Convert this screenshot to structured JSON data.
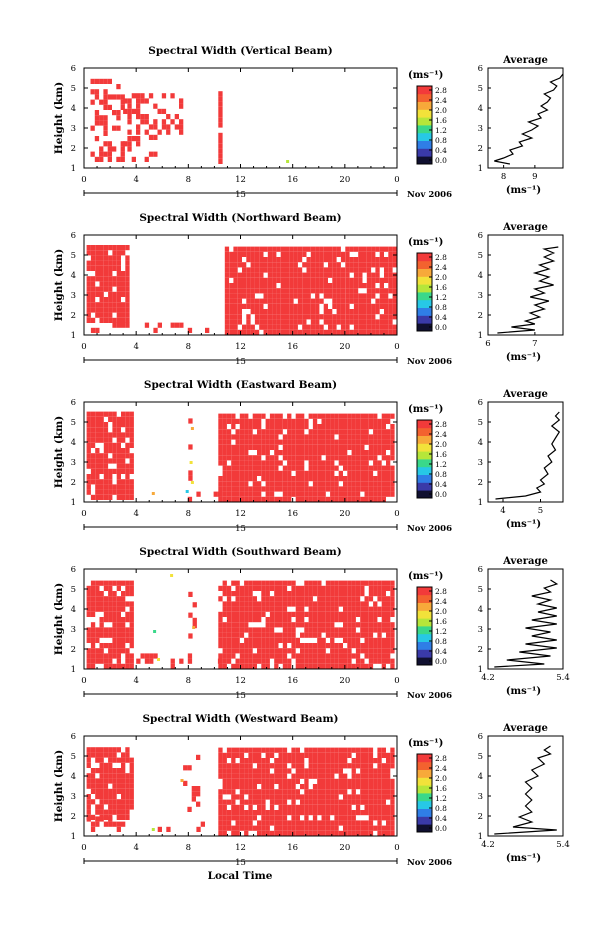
{
  "figure": {
    "xlabel": "Local Time",
    "date_label": "15",
    "date_suffix": "Nov 2006",
    "unit_label": "(ms⁻¹)",
    "avg_title": "Average",
    "avg_xlabel": "(ms⁻¹)"
  },
  "colorbar": {
    "ticks": [
      "0.0",
      "0.4",
      "0.8",
      "1.2",
      "1.6",
      "2.0",
      "2.4",
      "2.8"
    ],
    "colors": [
      "#101030",
      "#3a3aa8",
      "#2f7ee6",
      "#27c8e6",
      "#3ad88a",
      "#b6e63a",
      "#f2e23a",
      "#f7a93a",
      "#f3622f",
      "#f23a3a"
    ]
  },
  "colors": {
    "fill": "#f23a3a",
    "axis": "#000000"
  },
  "chart_data": [
    {
      "type": "heatmap",
      "title": "Spectral Width (Vertical Beam)",
      "ylabel": "Height (km)",
      "xlim": [
        0,
        24
      ],
      "ylim": [
        1,
        6
      ],
      "xticks": [
        "0",
        "4",
        "8",
        "12",
        "16",
        "20",
        "0"
      ],
      "yticks": [
        "1",
        "2",
        "3",
        "4",
        "5",
        "6"
      ],
      "colorbar_range": [
        0.0,
        2.8
      ],
      "data_blocks": [
        {
          "t0": 0.5,
          "t1": 3.0,
          "h0": 1.3,
          "h1": 5.4,
          "density": 0.45
        },
        {
          "t0": 3.0,
          "t1": 7.5,
          "h0": 2.4,
          "h1": 4.6,
          "density": 0.4
        },
        {
          "t0": 3.0,
          "t1": 5.5,
          "h0": 1.3,
          "h1": 2.4,
          "density": 0.25
        },
        {
          "t0": 10.3,
          "t1": 10.5,
          "h0": 1.2,
          "h1": 4.6,
          "density": 0.95
        }
      ],
      "scattered": [
        {
          "t": 15.5,
          "h": 1.25,
          "color_index": 5
        }
      ],
      "average": {
        "xlim": [
          7.5,
          9.9
        ],
        "xticks": [
          "8",
          "9"
        ],
        "profile": [
          [
            8.2,
            1.2
          ],
          [
            7.7,
            1.35
          ],
          [
            8.0,
            1.5
          ],
          [
            8.3,
            1.7
          ],
          [
            8.2,
            1.9
          ],
          [
            8.6,
            2.1
          ],
          [
            8.5,
            2.3
          ],
          [
            8.9,
            2.5
          ],
          [
            8.6,
            2.7
          ],
          [
            8.9,
            2.9
          ],
          [
            9.1,
            3.1
          ],
          [
            8.8,
            3.3
          ],
          [
            9.2,
            3.5
          ],
          [
            9.1,
            3.7
          ],
          [
            9.4,
            3.9
          ],
          [
            9.2,
            4.1
          ],
          [
            9.4,
            4.3
          ],
          [
            9.5,
            4.5
          ],
          [
            9.3,
            4.7
          ],
          [
            9.6,
            4.9
          ],
          [
            9.7,
            5.1
          ],
          [
            9.5,
            5.3
          ],
          [
            9.8,
            5.5
          ],
          [
            9.9,
            5.7
          ]
        ]
      }
    },
    {
      "type": "heatmap",
      "title": "Spectral Width (Northward Beam)",
      "ylabel": "Height (km)",
      "xlim": [
        0,
        24
      ],
      "ylim": [
        1,
        6
      ],
      "xticks": [
        "0",
        "4",
        "8",
        "12",
        "16",
        "20",
        "0"
      ],
      "yticks": [
        "1",
        "2",
        "3",
        "4",
        "5",
        "6"
      ],
      "colorbar_range": [
        0.0,
        2.8
      ],
      "data_blocks": [
        {
          "t0": 0.2,
          "t1": 3.3,
          "h0": 1.6,
          "h1": 5.4,
          "density": 0.88
        },
        {
          "t0": 0.2,
          "t1": 3.6,
          "h0": 1.1,
          "h1": 1.6,
          "density": 0.35
        },
        {
          "t0": 4.0,
          "t1": 10.8,
          "h0": 1.1,
          "h1": 1.4,
          "density": 0.12
        },
        {
          "t0": 10.8,
          "t1": 23.8,
          "h0": 1.0,
          "h1": 5.4,
          "density": 0.9
        }
      ],
      "scattered": [],
      "average": {
        "xlim": [
          6.0,
          7.6
        ],
        "xticks": [
          "6",
          "7"
        ],
        "profile": [
          [
            6.2,
            1.1
          ],
          [
            7.0,
            1.25
          ],
          [
            6.5,
            1.4
          ],
          [
            7.0,
            1.55
          ],
          [
            6.8,
            1.7
          ],
          [
            7.1,
            1.9
          ],
          [
            6.9,
            2.1
          ],
          [
            7.2,
            2.3
          ],
          [
            7.0,
            2.5
          ],
          [
            7.3,
            2.7
          ],
          [
            6.9,
            2.9
          ],
          [
            7.2,
            3.1
          ],
          [
            7.0,
            3.3
          ],
          [
            7.4,
            3.5
          ],
          [
            7.1,
            3.7
          ],
          [
            7.3,
            3.9
          ],
          [
            7.0,
            4.1
          ],
          [
            7.3,
            4.3
          ],
          [
            7.1,
            4.5
          ],
          [
            7.4,
            4.7
          ],
          [
            7.2,
            4.9
          ],
          [
            7.4,
            5.1
          ],
          [
            7.2,
            5.3
          ],
          [
            7.5,
            5.4
          ]
        ]
      }
    },
    {
      "type": "heatmap",
      "title": "Spectral Width (Eastward Beam)",
      "ylabel": "Height (km)",
      "xlim": [
        0,
        24
      ],
      "ylim": [
        1,
        6
      ],
      "xticks": [
        "0",
        "4",
        "8",
        "12",
        "16",
        "20",
        "0"
      ],
      "yticks": [
        "1",
        "2",
        "3",
        "4",
        "5",
        "6"
      ],
      "colorbar_range": [
        0.0,
        2.8
      ],
      "data_blocks": [
        {
          "t0": 0.2,
          "t1": 3.6,
          "h0": 1.1,
          "h1": 5.4,
          "density": 0.85
        },
        {
          "t0": 4.0,
          "t1": 10.3,
          "h0": 1.0,
          "h1": 1.5,
          "density": 0.15
        },
        {
          "t0": 8.0,
          "t1": 8.3,
          "h0": 1.8,
          "h1": 5.0,
          "density": 0.3
        },
        {
          "t0": 10.3,
          "t1": 23.8,
          "h0": 1.0,
          "h1": 5.4,
          "density": 0.9
        }
      ],
      "scattered": [
        {
          "t": 5.2,
          "h": 1.35,
          "color_index": 7
        },
        {
          "t": 7.8,
          "h": 1.45,
          "color_index": 3
        },
        {
          "t": 8.2,
          "h": 1.9,
          "color_index": 6
        },
        {
          "t": 8.1,
          "h": 2.9,
          "color_index": 6
        },
        {
          "t": 8.2,
          "h": 4.6,
          "color_index": 7
        }
      ],
      "average": {
        "xlim": [
          3.6,
          5.6
        ],
        "xticks": [
          "4",
          "5"
        ],
        "profile": [
          [
            3.8,
            1.15
          ],
          [
            4.6,
            1.3
          ],
          [
            5.0,
            1.5
          ],
          [
            4.9,
            1.7
          ],
          [
            5.1,
            1.9
          ],
          [
            5.0,
            2.1
          ],
          [
            5.2,
            2.4
          ],
          [
            5.1,
            2.7
          ],
          [
            5.3,
            3.0
          ],
          [
            5.2,
            3.3
          ],
          [
            5.4,
            3.6
          ],
          [
            5.3,
            3.9
          ],
          [
            5.4,
            4.2
          ],
          [
            5.5,
            4.5
          ],
          [
            5.3,
            4.8
          ],
          [
            5.5,
            5.1
          ],
          [
            5.4,
            5.3
          ],
          [
            5.5,
            5.5
          ]
        ]
      }
    },
    {
      "type": "heatmap",
      "title": "Spectral Width (Southward Beam)",
      "ylabel": "Height (km)",
      "xlim": [
        0,
        24
      ],
      "ylim": [
        1,
        6
      ],
      "xticks": [
        "0",
        "4",
        "8",
        "12",
        "16",
        "20",
        "0"
      ],
      "yticks": [
        "1",
        "2",
        "3",
        "4",
        "5",
        "6"
      ],
      "colorbar_range": [
        0.0,
        2.8
      ],
      "data_blocks": [
        {
          "t0": 0.2,
          "t1": 3.6,
          "h0": 1.0,
          "h1": 5.4,
          "density": 0.85
        },
        {
          "t0": 4.0,
          "t1": 10.3,
          "h0": 1.0,
          "h1": 1.6,
          "density": 0.18
        },
        {
          "t0": 8.0,
          "t1": 8.6,
          "h0": 2.0,
          "h1": 5.2,
          "density": 0.3
        },
        {
          "t0": 10.3,
          "t1": 23.8,
          "h0": 1.0,
          "h1": 5.4,
          "density": 0.9
        }
      ],
      "scattered": [
        {
          "t": 5.3,
          "h": 2.8,
          "color_index": 4
        },
        {
          "t": 5.6,
          "h": 1.4,
          "color_index": 6
        },
        {
          "t": 8.3,
          "h": 3.0,
          "color_index": 7
        },
        {
          "t": 6.6,
          "h": 5.6,
          "color_index": 6
        }
      ],
      "average": {
        "xlim": [
          4.2,
          5.4
        ],
        "xticks": [
          "4.2",
          "5.4"
        ],
        "profile": [
          [
            4.3,
            1.1
          ],
          [
            5.1,
            1.25
          ],
          [
            4.5,
            1.45
          ],
          [
            5.2,
            1.65
          ],
          [
            4.7,
            1.85
          ],
          [
            5.3,
            2.05
          ],
          [
            4.8,
            2.25
          ],
          [
            5.3,
            2.45
          ],
          [
            4.9,
            2.65
          ],
          [
            5.2,
            2.85
          ],
          [
            4.8,
            3.05
          ],
          [
            5.3,
            3.25
          ],
          [
            4.9,
            3.45
          ],
          [
            5.3,
            3.65
          ],
          [
            5.0,
            3.85
          ],
          [
            5.3,
            4.05
          ],
          [
            5.0,
            4.25
          ],
          [
            5.2,
            4.45
          ],
          [
            4.9,
            4.65
          ],
          [
            5.2,
            4.85
          ],
          [
            5.1,
            5.05
          ],
          [
            5.3,
            5.25
          ],
          [
            5.2,
            5.45
          ]
        ]
      }
    },
    {
      "type": "heatmap",
      "title": "Spectral Width (Westward Beam)",
      "ylabel": "Height (km)",
      "xlim": [
        0,
        24
      ],
      "ylim": [
        1,
        6
      ],
      "xticks": [
        "0",
        "4",
        "8",
        "12",
        "16",
        "20",
        "0"
      ],
      "yticks": [
        "1",
        "2",
        "3",
        "4",
        "5",
        "6"
      ],
      "colorbar_range": [
        0.0,
        2.8
      ],
      "data_blocks": [
        {
          "t0": 0.2,
          "t1": 3.6,
          "h0": 1.8,
          "h1": 5.4,
          "density": 0.85
        },
        {
          "t0": 0.2,
          "t1": 3.0,
          "h0": 1.2,
          "h1": 1.8,
          "density": 0.4
        },
        {
          "t0": 4.0,
          "t1": 10.3,
          "h0": 1.2,
          "h1": 1.6,
          "density": 0.12
        },
        {
          "t0": 7.6,
          "t1": 8.6,
          "h0": 2.2,
          "h1": 5.0,
          "density": 0.22
        },
        {
          "t0": 10.3,
          "t1": 23.8,
          "h0": 1.0,
          "h1": 5.4,
          "density": 0.9
        }
      ],
      "scattered": [
        {
          "t": 5.2,
          "h": 1.25,
          "color_index": 5
        },
        {
          "t": 7.4,
          "h": 3.7,
          "color_index": 7
        }
      ],
      "average": {
        "xlim": [
          4.2,
          5.4
        ],
        "xticks": [
          "4.2",
          "5.4"
        ],
        "profile": [
          [
            4.3,
            1.1
          ],
          [
            5.3,
            1.3
          ],
          [
            4.6,
            1.45
          ],
          [
            4.9,
            1.7
          ],
          [
            4.7,
            1.95
          ],
          [
            4.9,
            2.2
          ],
          [
            4.8,
            2.5
          ],
          [
            4.9,
            2.8
          ],
          [
            4.8,
            3.1
          ],
          [
            4.9,
            3.4
          ],
          [
            4.8,
            3.7
          ],
          [
            5.0,
            4.0
          ],
          [
            4.9,
            4.3
          ],
          [
            5.1,
            4.6
          ],
          [
            5.0,
            4.9
          ],
          [
            5.2,
            5.1
          ],
          [
            5.1,
            5.3
          ],
          [
            5.2,
            5.5
          ]
        ]
      }
    }
  ]
}
